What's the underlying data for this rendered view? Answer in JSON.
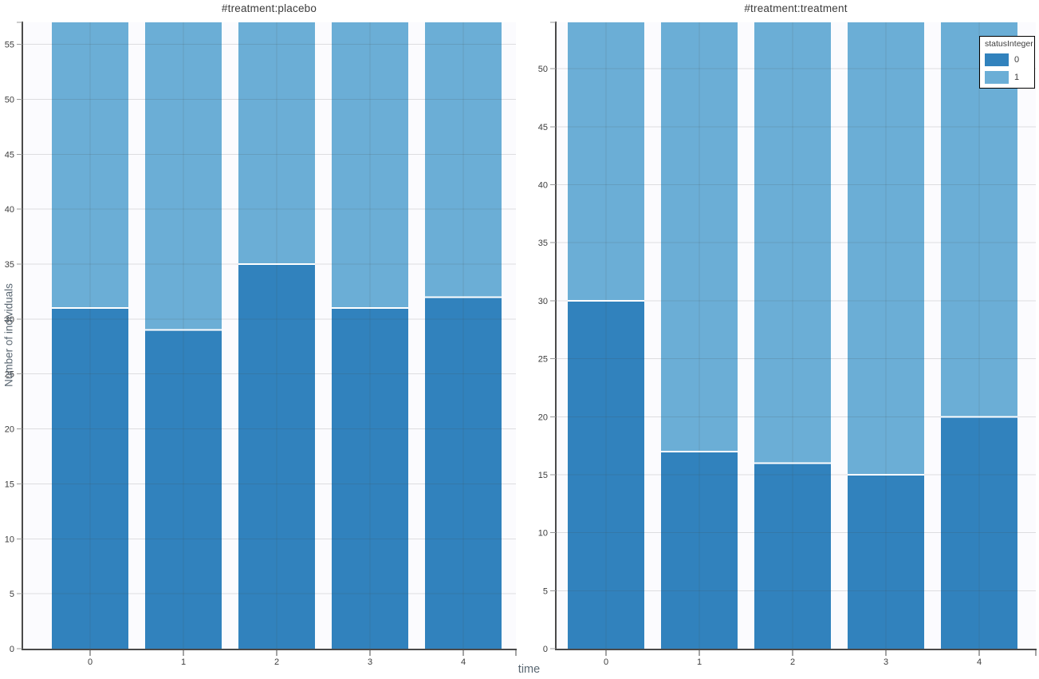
{
  "figure": {
    "x_axis_title": "time",
    "y_axis_title": "Number of individuals"
  },
  "legend": {
    "title": "statusInteger",
    "items": [
      {
        "label": "0",
        "color": "#3182bd"
      },
      {
        "label": "1",
        "color": "#6baed6"
      }
    ]
  },
  "colors": {
    "series0": "#3182bd",
    "series1": "#6baed6",
    "plot_background": "#fbfbfe",
    "grid": "rgba(70,70,70,0.16)",
    "axis_domain": "#4a4a4a",
    "y_tick_mark": "#999999",
    "x_tick_mark": "#4a4a4a",
    "tick_label": "#3d3d3d",
    "segment_separator": "#ffffff"
  },
  "chart_data": [
    {
      "type": "bar",
      "stacked": true,
      "title": "#treatment:placebo",
      "categories": [
        "0",
        "1",
        "2",
        "3",
        "4"
      ],
      "series": [
        {
          "name": "0",
          "values": [
            31,
            29,
            35,
            31,
            32
          ],
          "color": "#3182bd"
        },
        {
          "name": "1",
          "values": [
            26,
            28,
            22,
            26,
            25
          ],
          "color": "#6baed6"
        }
      ],
      "totals": [
        57,
        57,
        57,
        57,
        57
      ],
      "xlabel": "time",
      "ylabel": "Number of individuals",
      "ylim": [
        0,
        57
      ],
      "ytick_step": 5,
      "grid": true,
      "legend_position": "none"
    },
    {
      "type": "bar",
      "stacked": true,
      "title": "#treatment:treatment",
      "categories": [
        "0",
        "1",
        "2",
        "3",
        "4"
      ],
      "series": [
        {
          "name": "0",
          "values": [
            30,
            17,
            16,
            15,
            20
          ],
          "color": "#3182bd"
        },
        {
          "name": "1",
          "values": [
            24,
            37,
            38,
            39,
            34
          ],
          "color": "#6baed6"
        }
      ],
      "totals": [
        54,
        54,
        54,
        54,
        54
      ],
      "xlabel": "time",
      "ylabel": "Number of individuals",
      "ylim": [
        0,
        54
      ],
      "ytick_step": 5,
      "grid": true,
      "legend_position": "top-right"
    }
  ]
}
